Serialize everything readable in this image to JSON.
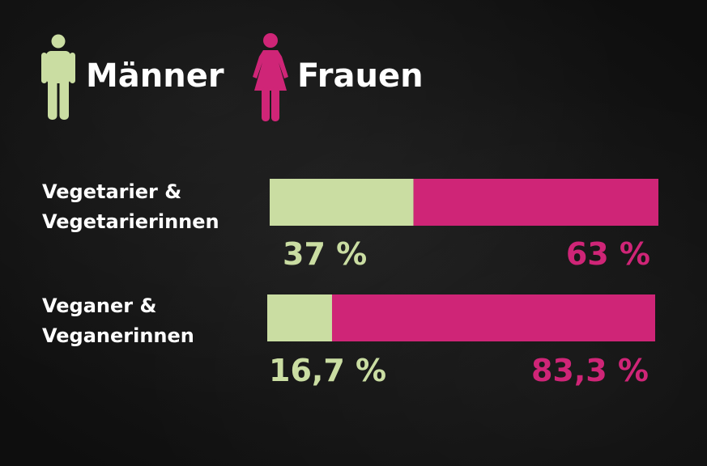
{
  "legend": {
    "men_label": "Männer",
    "women_label": "Frauen",
    "men_icon": "man-icon",
    "women_icon": "woman-icon"
  },
  "colors": {
    "men": "#cadda2",
    "women": "#cf2577",
    "background": "#141414",
    "text": "#ffffff"
  },
  "chart_data": {
    "type": "bar",
    "orientation": "horizontal",
    "stacked": "percent",
    "categories": [
      [
        "Vegetarier &",
        "Vegetarierinnen"
      ],
      [
        "Veganer &",
        "Veganerinnen"
      ]
    ],
    "series": [
      {
        "name": "Männer",
        "values": [
          37,
          16.7
        ],
        "labels": [
          "37 %",
          "16,7 %"
        ],
        "color": "#cadda2"
      },
      {
        "name": "Frauen",
        "values": [
          63,
          83.3
        ],
        "labels": [
          "63 %",
          "83,3 %"
        ],
        "color": "#cf2577"
      }
    ],
    "xlim": [
      0,
      100
    ],
    "grid": false,
    "legend_position": "top-left"
  }
}
